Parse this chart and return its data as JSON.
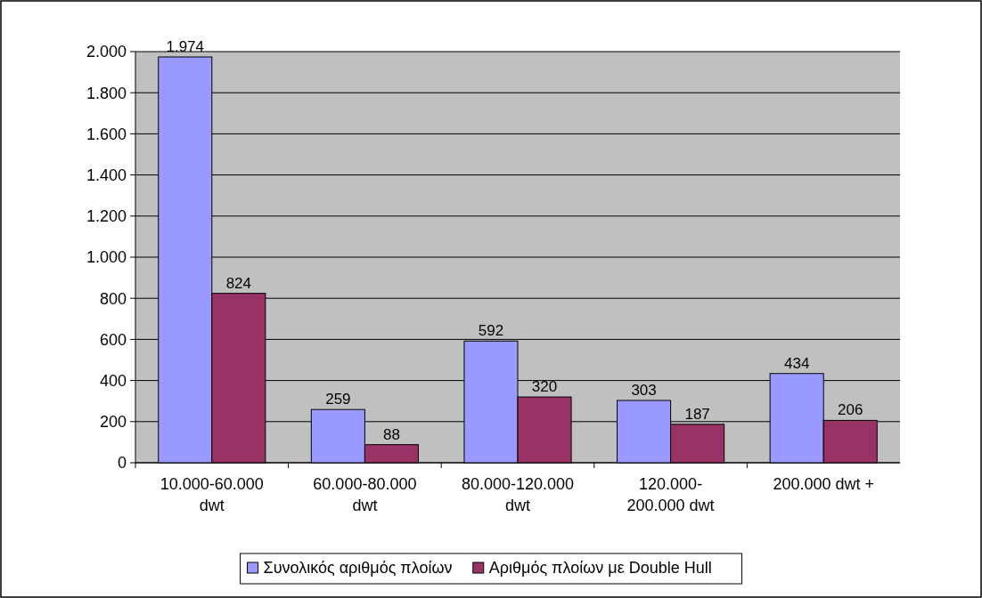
{
  "chart_data": {
    "type": "bar",
    "categories": [
      "10.000-60.000 dwt",
      "60.000-80.000 dwt",
      "80.000-120.000 dwt",
      "120.000-200.000 dwt",
      "200.000 dwt +"
    ],
    "series": [
      {
        "name": "Συνολικός αριθμός πλοίων",
        "color": "#9999ff",
        "values": [
          1974,
          259,
          592,
          303,
          434
        ],
        "value_labels": [
          "1.974",
          "259",
          "592",
          "303",
          "434"
        ]
      },
      {
        "name": "Αριθμός πλοίων με Double Hull",
        "color": "#993366",
        "values": [
          824,
          88,
          320,
          187,
          206
        ],
        "value_labels": [
          "824",
          "88",
          "320",
          "187",
          "206"
        ]
      }
    ],
    "ylim": [
      0,
      2000
    ],
    "yticks": [
      0,
      200,
      400,
      600,
      800,
      {
        "value": 1000,
        "label": "1.000"
      },
      {
        "value": 1200,
        "label": "1.200"
      },
      {
        "value": 1400,
        "label": "1.400"
      },
      {
        "value": 1600,
        "label": "1.600"
      },
      {
        "value": 1800,
        "label": "1.800"
      },
      {
        "value": 2000,
        "label": "2.000"
      }
    ],
    "grid": "y",
    "legend": "bottom"
  }
}
